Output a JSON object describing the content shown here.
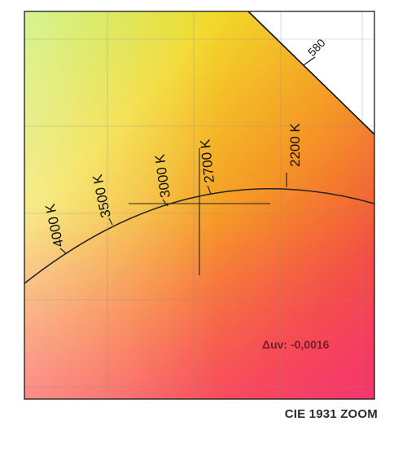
{
  "diagram": {
    "caption": "CIE 1931 ZOOM",
    "spectral_locus_label": "580",
    "delta_uv_label": "Δuv: -0,0016",
    "planckian_locus_labels": [
      "4000 K",
      "3500 K",
      "3000 K",
      "2700 K",
      "2200 K"
    ],
    "colors": {
      "border": "#1a1a1a",
      "curve": "#222222",
      "grid": "#8a8a8a",
      "delta_uv_text": "#7a1a2a"
    }
  }
}
